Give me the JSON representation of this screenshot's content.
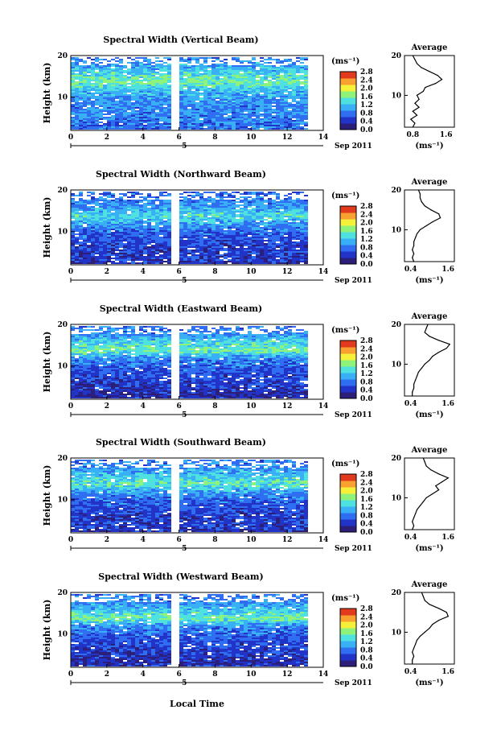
{
  "figure": {
    "xlabel": "Local Time",
    "ylabel": "Height (km)",
    "date_label": "Sep 2011",
    "day_label": "5",
    "unit_label": "(ms⁻¹)",
    "average_title": "Average",
    "x_ticks": [
      "0",
      "2",
      "4",
      "6",
      "8",
      "10",
      "12",
      "14"
    ],
    "y_ticks": [
      "10",
      "20"
    ],
    "colorbar_ticks": [
      "0.0",
      "0.4",
      "0.8",
      "1.2",
      "1.6",
      "2.0",
      "2.4",
      "2.8"
    ],
    "colors": {
      "colormap": [
        "#2b1f7a",
        "#2233c8",
        "#2f6ef0",
        "#39b0f5",
        "#4fe0e0",
        "#8ff27a",
        "#f5f03a",
        "#f8a030",
        "#e23a1e"
      ],
      "line": "#000000"
    }
  },
  "chart_data": [
    {
      "type": "heatmap",
      "title": "Spectral Width (Vertical Beam)",
      "xlabel": "Local Time",
      "ylabel": "Height (km)",
      "xlim": [
        0,
        14
      ],
      "ylim": [
        2,
        20
      ],
      "clim": [
        0.0,
        2.8
      ],
      "gap_hours": [
        5.5,
        6.0
      ],
      "data_end_hour": 13,
      "height_km": [
        2,
        4,
        6,
        8,
        10,
        12,
        14,
        16,
        18,
        20
      ],
      "mean_width_by_height": [
        0.7,
        0.8,
        0.9,
        0.9,
        1.0,
        1.2,
        1.6,
        1.3,
        1.0,
        0.8
      ],
      "average": {
        "xticks": [
          "0.8",
          "1.6"
        ],
        "xlim": [
          0.6,
          1.8
        ],
        "height_km": [
          2,
          3,
          4,
          5,
          6,
          7,
          8,
          9,
          10,
          11,
          12,
          13,
          14,
          15,
          16,
          17,
          18,
          19,
          20
        ],
        "width": [
          0.8,
          0.85,
          0.75,
          0.9,
          0.8,
          0.95,
          0.85,
          0.95,
          0.9,
          1.05,
          1.1,
          1.35,
          1.5,
          1.4,
          1.2,
          1.0,
          0.9,
          0.85,
          0.8
        ]
      }
    },
    {
      "type": "heatmap",
      "title": "Spectral Width (Northward Beam)",
      "xlabel": "Local Time",
      "ylabel": "Height (km)",
      "xlim": [
        0,
        14
      ],
      "ylim": [
        2,
        20
      ],
      "clim": [
        0.0,
        2.8
      ],
      "gap_hours": [
        5.5,
        6.0
      ],
      "data_end_hour": 13,
      "height_km": [
        2,
        4,
        6,
        8,
        10,
        12,
        14,
        16,
        18,
        20
      ],
      "mean_width_by_height": [
        0.4,
        0.5,
        0.5,
        0.6,
        0.7,
        1.0,
        1.4,
        1.0,
        0.8,
        0.7
      ],
      "average": {
        "xticks": [
          "0.4",
          "1.6"
        ],
        "xlim": [
          0.2,
          1.8
        ],
        "height_km": [
          2,
          3,
          4,
          5,
          6,
          7,
          8,
          9,
          10,
          11,
          12,
          13,
          14,
          15,
          16,
          17,
          18,
          19,
          20
        ],
        "width": [
          0.5,
          0.45,
          0.5,
          0.45,
          0.5,
          0.5,
          0.55,
          0.6,
          0.7,
          0.9,
          1.1,
          1.35,
          1.3,
          1.05,
          0.85,
          0.75,
          0.7,
          0.7,
          0.65
        ]
      }
    },
    {
      "type": "heatmap",
      "title": "Spectral Width (Eastward Beam)",
      "xlabel": "Local Time",
      "ylabel": "Height (km)",
      "xlim": [
        0,
        14
      ],
      "ylim": [
        2,
        20
      ],
      "clim": [
        0.0,
        2.8
      ],
      "gap_hours": [
        5.5,
        6.0
      ],
      "data_end_hour": 13,
      "height_km": [
        2,
        4,
        6,
        8,
        10,
        12,
        14,
        16,
        18,
        20
      ],
      "mean_width_by_height": [
        0.3,
        0.4,
        0.5,
        0.6,
        0.7,
        0.9,
        1.6,
        1.3,
        0.9,
        0.8
      ],
      "average": {
        "xticks": [
          "0.4",
          "1.6"
        ],
        "xlim": [
          0.2,
          1.8
        ],
        "height_km": [
          2,
          3,
          4,
          5,
          6,
          7,
          8,
          9,
          10,
          11,
          12,
          13,
          14,
          15,
          16,
          17,
          18,
          19,
          20
        ],
        "width": [
          0.45,
          0.45,
          0.5,
          0.5,
          0.55,
          0.6,
          0.65,
          0.75,
          0.85,
          1.0,
          1.1,
          1.3,
          1.55,
          1.65,
          1.3,
          1.0,
          0.85,
          0.9,
          0.95
        ]
      }
    },
    {
      "type": "heatmap",
      "title": "Spectral Width (Southward Beam)",
      "xlabel": "Local Time",
      "ylabel": "Height (km)",
      "xlim": [
        0,
        14
      ],
      "ylim": [
        2,
        20
      ],
      "clim": [
        0.0,
        2.8
      ],
      "gap_hours": [
        5.5,
        6.0
      ],
      "data_end_hour": 13,
      "height_km": [
        2,
        4,
        6,
        8,
        10,
        12,
        14,
        16,
        18,
        20
      ],
      "mean_width_by_height": [
        0.4,
        0.5,
        0.5,
        0.6,
        0.7,
        1.0,
        1.5,
        1.2,
        0.9,
        0.8
      ],
      "average": {
        "xticks": [
          "0.4",
          "1.6"
        ],
        "xlim": [
          0.2,
          1.8
        ],
        "height_km": [
          2,
          3,
          4,
          5,
          6,
          7,
          8,
          9,
          10,
          11,
          12,
          13,
          14,
          15,
          16,
          17,
          18,
          19,
          20
        ],
        "width": [
          0.45,
          0.5,
          0.45,
          0.5,
          0.55,
          0.6,
          0.7,
          0.8,
          0.9,
          1.1,
          1.3,
          1.2,
          1.4,
          1.6,
          1.3,
          1.05,
          0.9,
          0.85,
          0.8
        ]
      }
    },
    {
      "type": "heatmap",
      "title": "Spectral Width (Westward Beam)",
      "xlabel": "Local Time",
      "ylabel": "Height (km)",
      "xlim": [
        0,
        14
      ],
      "ylim": [
        2,
        20
      ],
      "clim": [
        0.0,
        2.8
      ],
      "gap_hours": [
        5.5,
        6.0
      ],
      "data_end_hour": 13,
      "height_km": [
        2,
        4,
        6,
        8,
        10,
        12,
        14,
        16,
        18,
        20
      ],
      "mean_width_by_height": [
        0.4,
        0.4,
        0.5,
        0.6,
        0.7,
        0.9,
        1.6,
        1.2,
        0.9,
        0.8
      ],
      "average": {
        "xticks": [
          "0.4",
          "1.6"
        ],
        "xlim": [
          0.2,
          1.8
        ],
        "height_km": [
          2,
          3,
          4,
          5,
          6,
          7,
          8,
          9,
          10,
          11,
          12,
          13,
          14,
          15,
          16,
          17,
          18,
          19,
          20
        ],
        "width": [
          0.45,
          0.45,
          0.5,
          0.45,
          0.5,
          0.55,
          0.6,
          0.7,
          0.85,
          1.0,
          1.1,
          1.3,
          1.6,
          1.55,
          1.3,
          1.0,
          0.85,
          0.8,
          0.75
        ]
      }
    }
  ]
}
